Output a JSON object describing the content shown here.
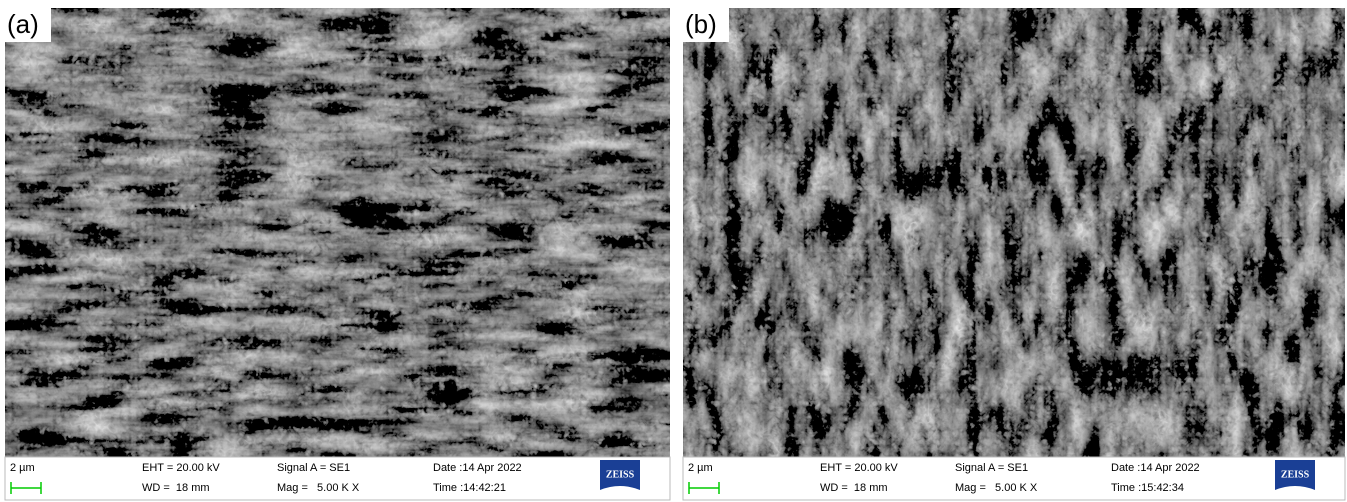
{
  "panels": [
    {
      "label": "(a)",
      "scale_bar": "2 µm",
      "eht": "EHT = 20.00 kV",
      "wd": "WD =  18 mm",
      "signal": "Signal A = SE1",
      "mag": "Mag =   5.00 K X",
      "date": "Date :14 Apr 2022",
      "time": "Time :14:42:21",
      "logo": "ZEISS"
    },
    {
      "label": "(b)",
      "scale_bar": "2 µm",
      "eht": "EHT = 20.00 kV",
      "wd": "WD =  18 mm",
      "signal": "Signal A = SE1",
      "mag": "Mag =   5.00 K X",
      "date": "Date :14 Apr 2022",
      "time": "Time :15:42:34",
      "logo": "ZEISS"
    }
  ]
}
